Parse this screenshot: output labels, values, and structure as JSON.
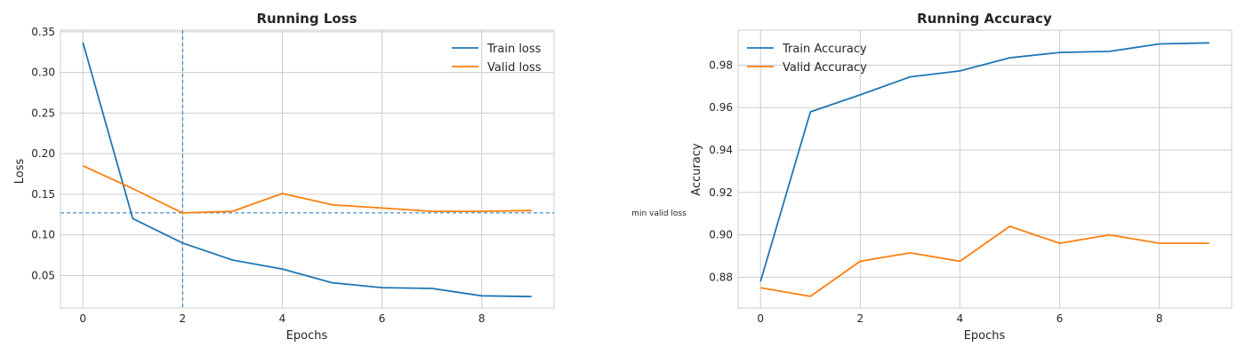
{
  "chart_data": [
    {
      "type": "line",
      "title": "Running Loss",
      "xlabel": "Epochs",
      "ylabel": "Loss",
      "x": [
        0,
        1,
        2,
        3,
        4,
        5,
        6,
        7,
        8,
        9
      ],
      "xlim": [
        -0.45,
        9.45
      ],
      "ylim": [
        0.01,
        0.352
      ],
      "xticks": [
        0,
        2,
        4,
        6,
        8
      ],
      "yticks": [
        0.05,
        0.1,
        0.15,
        0.2,
        0.25,
        0.3,
        0.35
      ],
      "ytick_labels": [
        "0.05",
        "0.10",
        "0.15",
        "0.20",
        "0.25",
        "0.30",
        "0.35"
      ],
      "grid": true,
      "legend_position": "top-right",
      "series": [
        {
          "name": "Train loss",
          "color": "#1f77b4",
          "values": [
            0.337,
            0.12,
            0.09,
            0.069,
            0.058,
            0.041,
            0.035,
            0.034,
            0.025,
            0.024
          ]
        },
        {
          "name": "Valid loss",
          "color": "#ff7f0e",
          "values": [
            0.185,
            0.157,
            0.127,
            0.129,
            0.151,
            0.137,
            0.133,
            0.129,
            0.129,
            0.13
          ]
        }
      ],
      "reference_lines": {
        "vertical_x": 2,
        "horizontal_y": 0.127,
        "color": "#1f77b4",
        "annotation": "min valid loss"
      }
    },
    {
      "type": "line",
      "title": "Running Accuracy",
      "xlabel": "Epochs",
      "ylabel": "Accuracy",
      "x": [
        0,
        1,
        2,
        3,
        4,
        5,
        6,
        7,
        8,
        9
      ],
      "xlim": [
        -0.45,
        9.45
      ],
      "ylim": [
        0.8655,
        0.9965
      ],
      "xticks": [
        0,
        2,
        4,
        6,
        8
      ],
      "yticks": [
        0.88,
        0.9,
        0.92,
        0.94,
        0.96,
        0.98
      ],
      "ytick_labels": [
        "0.88",
        "0.90",
        "0.92",
        "0.94",
        "0.96",
        "0.98"
      ],
      "grid": true,
      "legend_position": "top-left",
      "series": [
        {
          "name": "Train Accuracy",
          "color": "#1f77b4",
          "values": [
            0.878,
            0.958,
            0.966,
            0.9745,
            0.9773,
            0.9835,
            0.986,
            0.9865,
            0.99,
            0.9905
          ]
        },
        {
          "name": "Valid Accuracy",
          "color": "#ff7f0e",
          "values": [
            0.875,
            0.871,
            0.8875,
            0.8915,
            0.8875,
            0.904,
            0.896,
            0.9,
            0.896,
            0.896
          ]
        }
      ]
    }
  ]
}
